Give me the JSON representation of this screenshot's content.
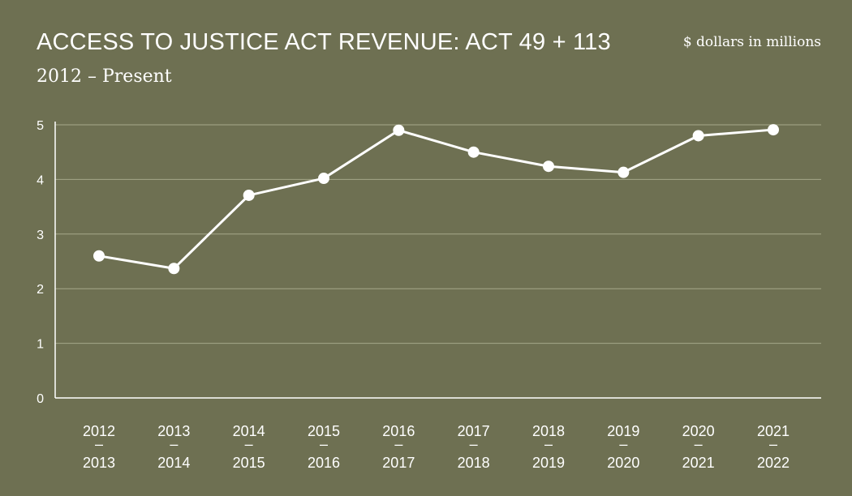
{
  "chart_data": {
    "type": "line",
    "title": "ACCESS TO JUSTICE ACT REVENUE: ACT 49 + 113",
    "subtitle": "2012 – Present",
    "units_note": "$ dollars in millions",
    "categories": [
      [
        "2012",
        "–",
        "2013"
      ],
      [
        "2013",
        "–",
        "2014"
      ],
      [
        "2014",
        "–",
        "2015"
      ],
      [
        "2015",
        "–",
        "2016"
      ],
      [
        "2016",
        "–",
        "2017"
      ],
      [
        "2017",
        "–",
        "2018"
      ],
      [
        "2018",
        "–",
        "2019"
      ],
      [
        "2019",
        "–",
        "2020"
      ],
      [
        "2020",
        "–",
        "2021"
      ],
      [
        "2021",
        "–",
        "2022"
      ]
    ],
    "values": [
      2.6,
      2.37,
      3.71,
      4.02,
      4.9,
      4.5,
      4.24,
      4.13,
      4.8,
      4.91
    ],
    "ylim": [
      0,
      5
    ],
    "y_ticks": [
      0,
      1,
      2,
      3,
      4,
      5
    ],
    "grid": true,
    "legend": "none",
    "colors": {
      "background": "#6e7052",
      "line": "#ffffff",
      "grid": "#a5a78a"
    }
  }
}
